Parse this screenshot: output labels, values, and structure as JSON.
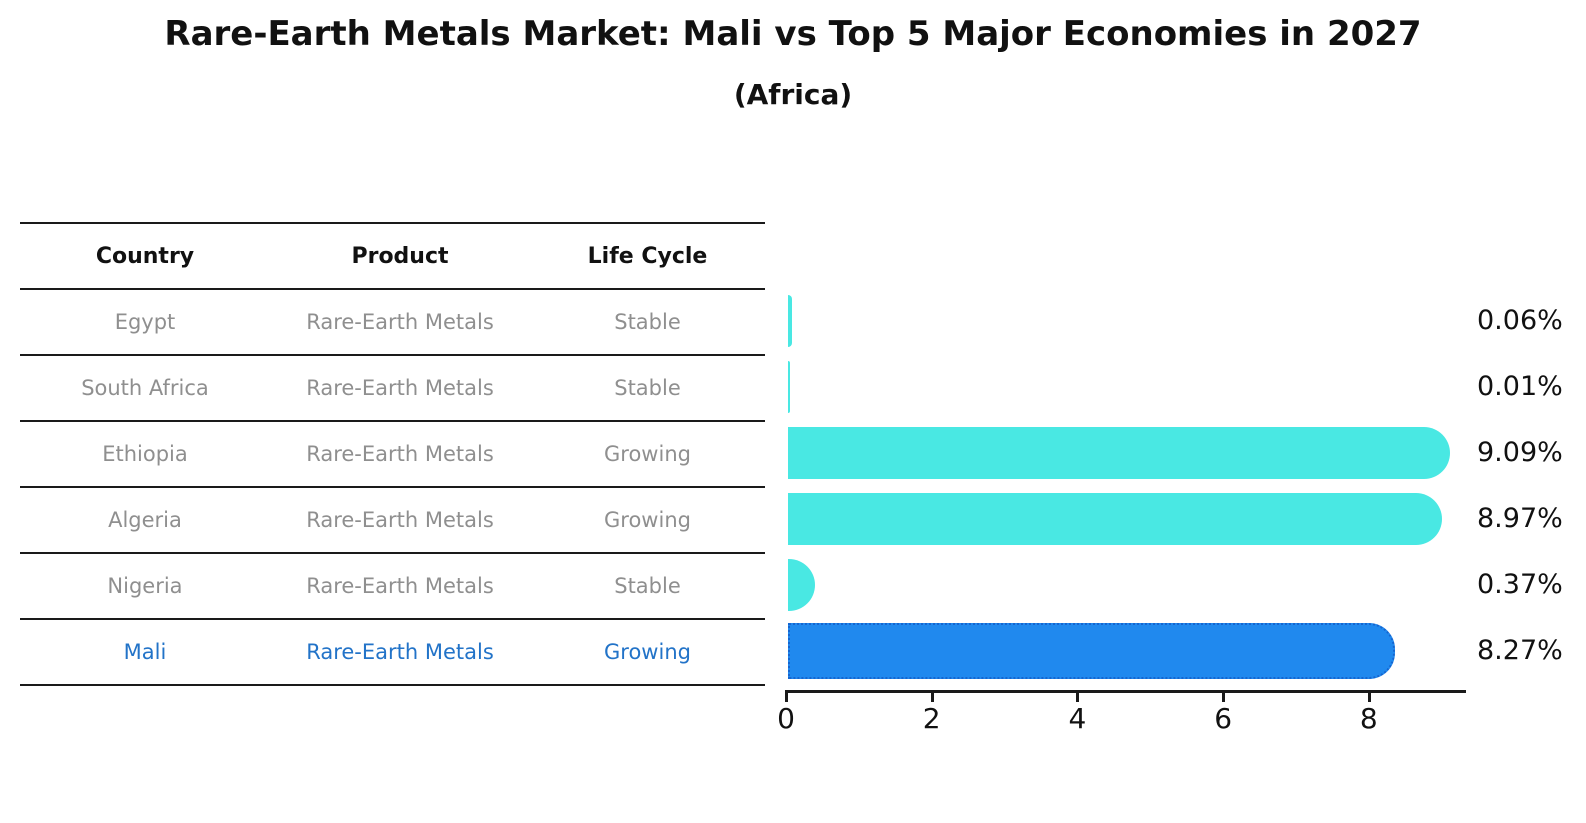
{
  "title": "Rare-Earth Metals Market: Mali vs Top 5 Major Economies in 2027",
  "subtitle": "(Africa)",
  "table": {
    "headers": [
      "Country",
      "Product",
      "Life Cycle"
    ],
    "rows": [
      {
        "country": "Egypt",
        "product": "Rare-Earth Metals",
        "life_cycle": "Stable",
        "highlight": false
      },
      {
        "country": "South Africa",
        "product": "Rare-Earth Metals",
        "life_cycle": "Stable",
        "highlight": false
      },
      {
        "country": "Ethiopia",
        "product": "Rare-Earth Metals",
        "life_cycle": "Growing",
        "highlight": false
      },
      {
        "country": "Algeria",
        "product": "Rare-Earth Metals",
        "life_cycle": "Growing",
        "highlight": false
      },
      {
        "country": "Nigeria",
        "product": "Rare-Earth Metals",
        "life_cycle": "Stable",
        "highlight": false
      },
      {
        "country": "Mali",
        "product": "Rare-Earth Metals",
        "life_cycle": "Growing",
        "highlight": true
      }
    ]
  },
  "chart_data": {
    "type": "bar",
    "orientation": "horizontal",
    "title": "Rare-Earth Metals Market: Mali vs Top 5 Major Economies in 2027",
    "subtitle": "(Africa)",
    "categories": [
      "Egypt",
      "South Africa",
      "Ethiopia",
      "Algeria",
      "Nigeria",
      "Mali"
    ],
    "values": [
      0.06,
      0.01,
      9.09,
      8.97,
      0.37,
      8.27
    ],
    "value_labels": [
      "0.06%",
      "0.01%",
      "9.09%",
      "8.97%",
      "0.37%",
      "8.27%"
    ],
    "xlim": [
      0,
      9.32
    ],
    "xticks": [
      "0",
      "2",
      "4",
      "6",
      "8"
    ],
    "xtick_values": [
      0,
      2,
      4,
      6,
      8
    ],
    "grid": false,
    "legend": false,
    "highlight_index": 5,
    "colors": {
      "bar": "#49e8e3",
      "highlight_bar": "#2089ee",
      "highlight_bar_border": "#1565d0",
      "highlight_text": "#2273c8",
      "cell_text": "#8f8f8f",
      "axis": "#1a1a1a",
      "value_label": "#111111"
    }
  }
}
